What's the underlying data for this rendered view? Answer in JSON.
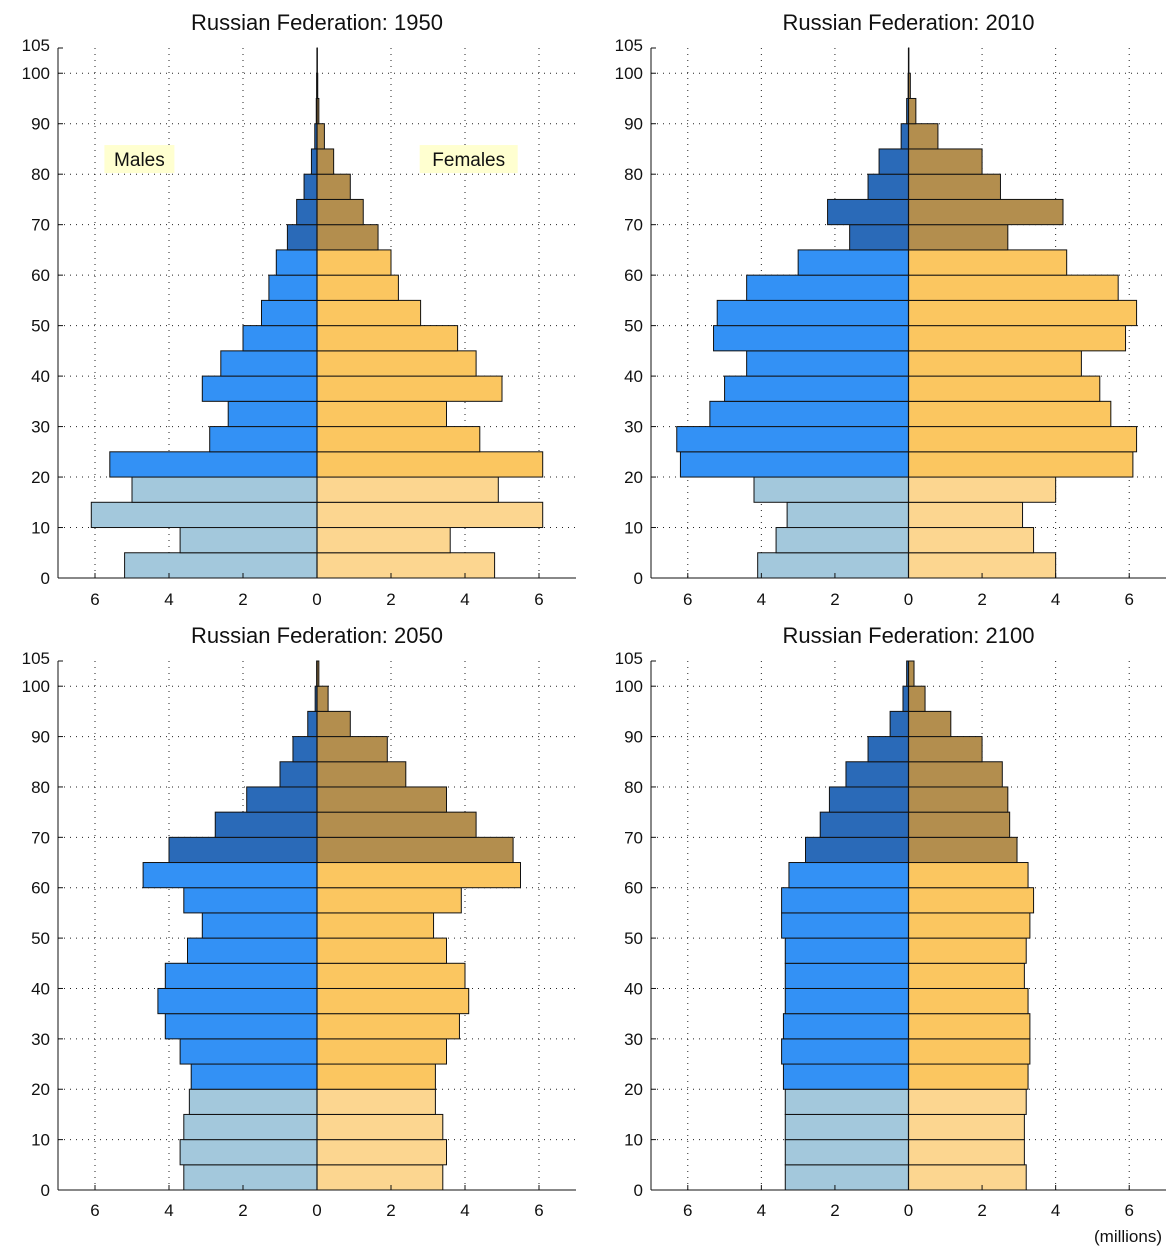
{
  "chart_data": [
    {
      "type": "bar",
      "title": "Russian Federation: 1950",
      "age_groups": [
        "0-4",
        "5-9",
        "10-14",
        "15-19",
        "20-24",
        "25-29",
        "30-34",
        "35-39",
        "40-44",
        "45-49",
        "50-54",
        "55-59",
        "60-64",
        "65-69",
        "70-74",
        "75-79",
        "80-84",
        "85-89",
        "90-94",
        "95-99",
        "100+"
      ],
      "y_ticks": [
        0,
        10,
        20,
        30,
        40,
        50,
        60,
        70,
        80,
        90,
        100,
        105
      ],
      "x_ticks": [
        6,
        4,
        2,
        0,
        2,
        4,
        6
      ],
      "xlim": [
        -7,
        7
      ],
      "ylim": [
        0,
        105
      ],
      "grid": true,
      "labels": {
        "males": "Males",
        "females": "Females"
      },
      "series": [
        {
          "name": "Males",
          "values": [
            5.2,
            3.7,
            6.1,
            5.0,
            5.6,
            2.9,
            2.4,
            3.1,
            2.6,
            2.0,
            1.5,
            1.3,
            1.1,
            0.8,
            0.55,
            0.35,
            0.15,
            0.06,
            0.02,
            0.01,
            0.0
          ]
        },
        {
          "name": "Females",
          "values": [
            4.8,
            3.6,
            6.1,
            4.9,
            6.1,
            4.4,
            3.5,
            5.0,
            4.3,
            3.8,
            2.8,
            2.2,
            2.0,
            1.65,
            1.25,
            0.9,
            0.45,
            0.2,
            0.05,
            0.02,
            0.01
          ]
        }
      ]
    },
    {
      "type": "bar",
      "title": "Russian Federation: 2010",
      "age_groups": [
        "0-4",
        "5-9",
        "10-14",
        "15-19",
        "20-24",
        "25-29",
        "30-34",
        "35-39",
        "40-44",
        "45-49",
        "50-54",
        "55-59",
        "60-64",
        "65-69",
        "70-74",
        "75-79",
        "80-84",
        "85-89",
        "90-94",
        "95-99",
        "100+"
      ],
      "y_ticks": [
        0,
        10,
        20,
        30,
        40,
        50,
        60,
        70,
        80,
        90,
        100,
        105
      ],
      "x_ticks": [
        6,
        4,
        2,
        0,
        2,
        4,
        6
      ],
      "xlim": [
        -7,
        7
      ],
      "ylim": [
        0,
        105
      ],
      "grid": true,
      "series": [
        {
          "name": "Males",
          "values": [
            4.1,
            3.6,
            3.3,
            4.2,
            6.2,
            6.3,
            5.4,
            5.0,
            4.4,
            5.3,
            5.2,
            4.4,
            3.0,
            1.6,
            2.2,
            1.1,
            0.8,
            0.2,
            0.05,
            0.01,
            0.0
          ]
        },
        {
          "name": "Females",
          "values": [
            4.0,
            3.4,
            3.1,
            4.0,
            6.1,
            6.2,
            5.5,
            5.2,
            4.7,
            5.9,
            6.2,
            5.7,
            4.3,
            2.7,
            4.2,
            2.5,
            2.0,
            0.8,
            0.2,
            0.05,
            0.01
          ]
        }
      ]
    },
    {
      "type": "bar",
      "title": "Russian Federation: 2050",
      "age_groups": [
        "0-4",
        "5-9",
        "10-14",
        "15-19",
        "20-24",
        "25-29",
        "30-34",
        "35-39",
        "40-44",
        "45-49",
        "50-54",
        "55-59",
        "60-64",
        "65-69",
        "70-74",
        "75-79",
        "80-84",
        "85-89",
        "90-94",
        "95-99",
        "100+"
      ],
      "y_ticks": [
        0,
        10,
        20,
        30,
        40,
        50,
        60,
        70,
        80,
        90,
        100,
        105
      ],
      "x_ticks": [
        6,
        4,
        2,
        0,
        2,
        4,
        6
      ],
      "xlim": [
        -7,
        7
      ],
      "ylim": [
        0,
        105
      ],
      "grid": true,
      "series": [
        {
          "name": "Males",
          "values": [
            3.6,
            3.7,
            3.6,
            3.45,
            3.4,
            3.7,
            4.1,
            4.3,
            4.1,
            3.5,
            3.1,
            3.6,
            4.7,
            4.0,
            2.75,
            1.9,
            1.0,
            0.65,
            0.25,
            0.05,
            0.01
          ]
        },
        {
          "name": "Females",
          "values": [
            3.4,
            3.5,
            3.4,
            3.2,
            3.2,
            3.5,
            3.85,
            4.1,
            4.0,
            3.5,
            3.15,
            3.9,
            5.5,
            5.3,
            4.3,
            3.5,
            2.4,
            1.9,
            0.9,
            0.3,
            0.05
          ]
        }
      ]
    },
    {
      "type": "bar",
      "title": "Russian Federation: 2100",
      "age_groups": [
        "0-4",
        "5-9",
        "10-14",
        "15-19",
        "20-24",
        "25-29",
        "30-34",
        "35-39",
        "40-44",
        "45-49",
        "50-54",
        "55-59",
        "60-64",
        "65-69",
        "70-74",
        "75-79",
        "80-84",
        "85-89",
        "90-94",
        "95-99",
        "100+"
      ],
      "y_ticks": [
        0,
        10,
        20,
        30,
        40,
        50,
        60,
        70,
        80,
        90,
        100,
        105
      ],
      "x_ticks": [
        6,
        4,
        2,
        0,
        2,
        4,
        6
      ],
      "xlim": [
        -7,
        7
      ],
      "ylim": [
        0,
        105
      ],
      "grid": true,
      "x_unit": "(millions)",
      "series": [
        {
          "name": "Males",
          "values": [
            3.35,
            3.35,
            3.35,
            3.35,
            3.4,
            3.45,
            3.4,
            3.35,
            3.35,
            3.35,
            3.45,
            3.45,
            3.25,
            2.8,
            2.4,
            2.15,
            1.7,
            1.1,
            0.5,
            0.15,
            0.05
          ]
        },
        {
          "name": "Females",
          "values": [
            3.2,
            3.15,
            3.15,
            3.2,
            3.25,
            3.3,
            3.3,
            3.25,
            3.15,
            3.2,
            3.3,
            3.4,
            3.25,
            2.95,
            2.75,
            2.7,
            2.55,
            2.0,
            1.15,
            0.45,
            0.15
          ]
        }
      ]
    }
  ]
}
